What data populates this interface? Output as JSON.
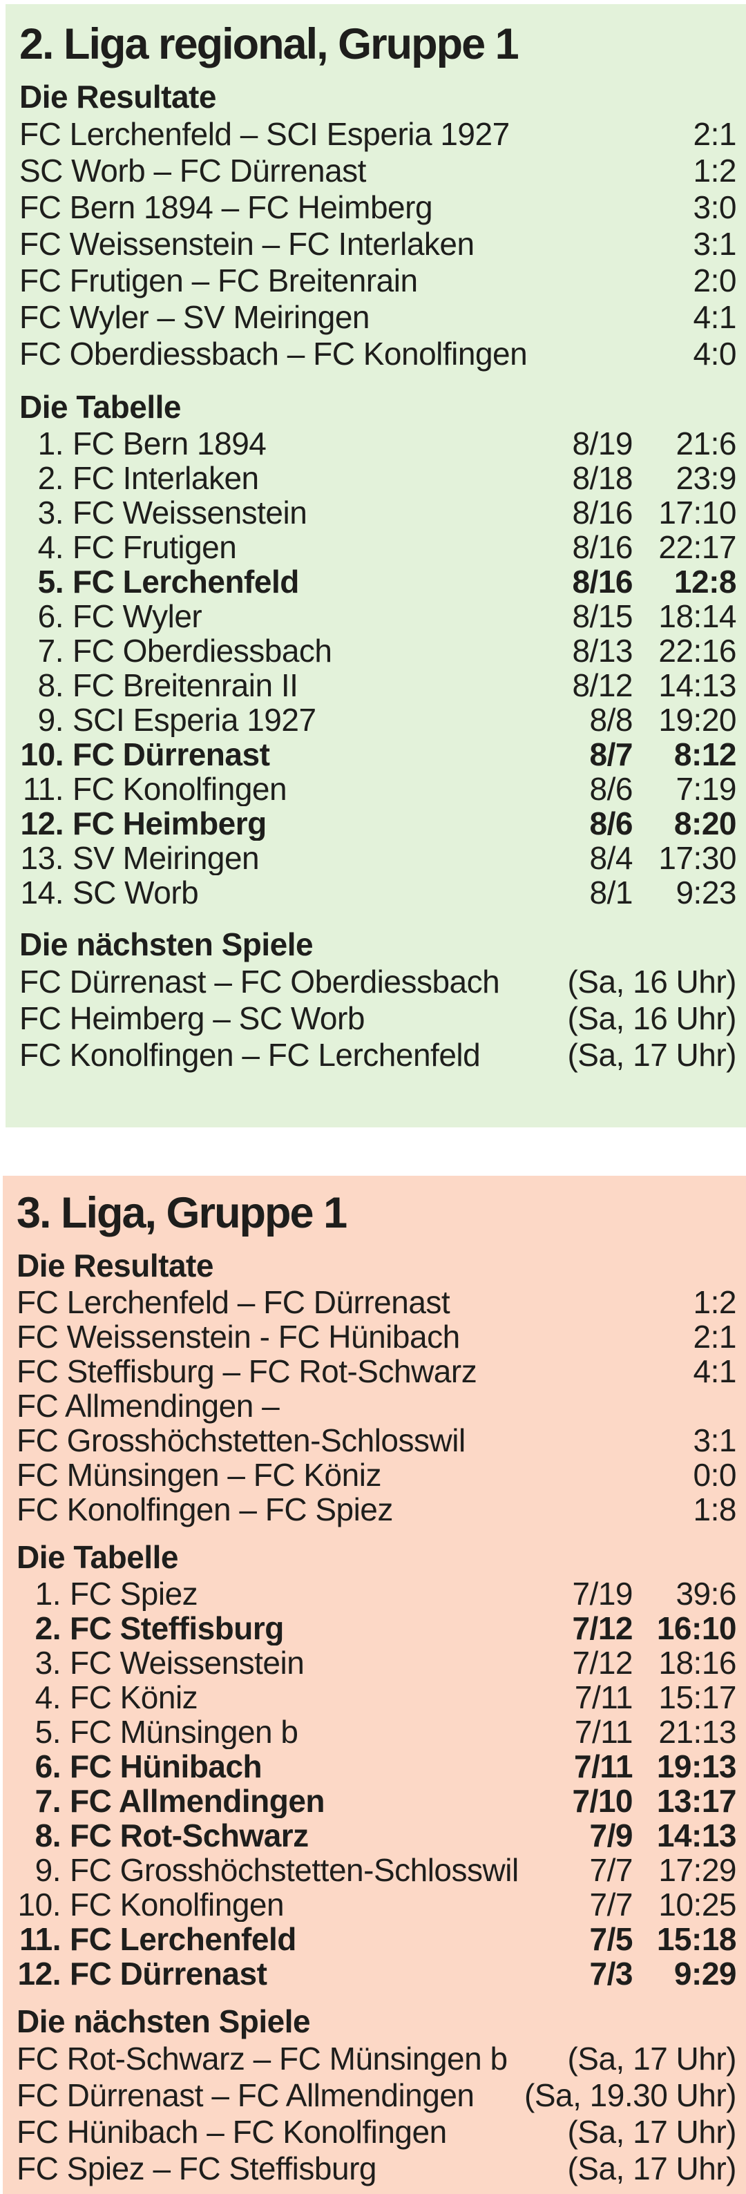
{
  "page": {
    "background": "#ffffff",
    "text_color": "#1e1e1c"
  },
  "sections": [
    {
      "title": "2. Liga regional, Gruppe 1",
      "background": "#e3f2da",
      "results_heading": "Die Resultate",
      "results": [
        {
          "match": "FC Lerchenfeld – SCI Esperia 1927",
          "score": "2:1"
        },
        {
          "match": "SC Worb – FC Dürrenast",
          "score": "1:2"
        },
        {
          "match": "FC Bern 1894 – FC Heimberg",
          "score": "3:0"
        },
        {
          "match": "FC Weissenstein – FC Interlaken",
          "score": "3:1"
        },
        {
          "match": "FC Frutigen – FC Breitenrain",
          "score": "2:0"
        },
        {
          "match": "FC Wyler – SV Meiringen",
          "score": "4:1"
        },
        {
          "match": "FC Oberdiessbach – FC Konolfingen",
          "score": "4:0"
        }
      ],
      "table_heading": "Die Tabelle",
      "table": [
        {
          "rank": "1.",
          "team": "FC Bern 1894",
          "games": "8/19",
          "goals": "21:6",
          "bold": false
        },
        {
          "rank": "2.",
          "team": "FC Interlaken",
          "games": "8/18",
          "goals": "23:9",
          "bold": false
        },
        {
          "rank": "3.",
          "team": "FC Weissenstein",
          "games": "8/16",
          "goals": "17:10",
          "bold": false
        },
        {
          "rank": "4.",
          "team": "FC Frutigen",
          "games": "8/16",
          "goals": "22:17",
          "bold": false
        },
        {
          "rank": "5.",
          "team": "FC Lerchenfeld",
          "games": "8/16",
          "goals": "12:8",
          "bold": true
        },
        {
          "rank": "6.",
          "team": "FC Wyler",
          "games": "8/15",
          "goals": "18:14",
          "bold": false
        },
        {
          "rank": "7.",
          "team": "FC Oberdiessbach",
          "games": "8/13",
          "goals": "22:16",
          "bold": false
        },
        {
          "rank": "8.",
          "team": "FC Breitenrain II",
          "games": "8/12",
          "goals": "14:13",
          "bold": false
        },
        {
          "rank": "9.",
          "team": "SCI Esperia 1927",
          "games": "8/8",
          "goals": "19:20",
          "bold": false
        },
        {
          "rank": "10.",
          "team": "FC Dürrenast",
          "games": "8/7",
          "goals": "8:12",
          "bold": true
        },
        {
          "rank": "11.",
          "team": "FC Konolfingen",
          "games": "8/6",
          "goals": "7:19",
          "bold": false
        },
        {
          "rank": "12.",
          "team": "FC Heimberg",
          "games": "8/6",
          "goals": "8:20",
          "bold": true
        },
        {
          "rank": "13.",
          "team": "SV Meiringen",
          "games": "8/4",
          "goals": "17:30",
          "bold": false
        },
        {
          "rank": "14.",
          "team": "SC Worb",
          "games": "8/1",
          "goals": "9:23",
          "bold": false
        }
      ],
      "fixtures_heading": "Die nächsten Spiele",
      "fixtures": [
        {
          "match": "FC Dürrenast – FC Oberdiessbach",
          "time": "(Sa, 16 Uhr)"
        },
        {
          "match": "FC Heimberg – SC Worb",
          "time": "(Sa, 16 Uhr)"
        },
        {
          "match": "FC Konolfingen – FC Lerchenfeld",
          "time": "(Sa, 17 Uhr)"
        }
      ]
    },
    {
      "title": "3. Liga, Gruppe 1",
      "background": "#fcd8c6",
      "results_heading": "Die Resultate",
      "results": [
        {
          "match": "FC Lerchenfeld – FC Dürrenast",
          "score": "1:2"
        },
        {
          "match": "FC Weissenstein - FC Hünibach",
          "score": "2:1"
        },
        {
          "match": "FC Steffisburg – FC Rot-Schwarz",
          "score": "4:1"
        },
        {
          "match": "FC Allmendingen –",
          "score": ""
        },
        {
          "match": "FC Grosshöchstetten-Schlosswil",
          "score": "3:1"
        },
        {
          "match": "FC Münsingen – FC Köniz",
          "score": "0:0"
        },
        {
          "match": "FC Konolfingen – FC Spiez",
          "score": "1:8"
        }
      ],
      "table_heading": "Die Tabelle",
      "table": [
        {
          "rank": "1.",
          "team": "FC Spiez",
          "games": "7/19",
          "goals": "39:6",
          "bold": false
        },
        {
          "rank": "2.",
          "team": "FC Steffisburg",
          "games": "7/12",
          "goals": "16:10",
          "bold": true
        },
        {
          "rank": "3.",
          "team": "FC Weissenstein",
          "games": "7/12",
          "goals": "18:16",
          "bold": false
        },
        {
          "rank": "4.",
          "team": "FC Köniz",
          "games": "7/11",
          "goals": "15:17",
          "bold": false
        },
        {
          "rank": "5.",
          "team": "FC Münsingen b",
          "games": "7/11",
          "goals": "21:13",
          "bold": false
        },
        {
          "rank": "6.",
          "team": "FC Hünibach",
          "games": "7/11",
          "goals": "19:13",
          "bold": true
        },
        {
          "rank": "7.",
          "team": "FC Allmendingen",
          "games": "7/10",
          "goals": "13:17",
          "bold": true
        },
        {
          "rank": "8.",
          "team": "FC Rot-Schwarz",
          "games": "7/9",
          "goals": "14:13",
          "bold": true
        },
        {
          "rank": "9.",
          "team": "FC Grosshöchstetten-Schlosswil",
          "games": "7/7",
          "goals": "17:29",
          "bold": false
        },
        {
          "rank": "10.",
          "team": "FC Konolfingen",
          "games": "7/7",
          "goals": "10:25",
          "bold": false
        },
        {
          "rank": "11.",
          "team": "FC Lerchenfeld",
          "games": "7/5",
          "goals": "15:18",
          "bold": true
        },
        {
          "rank": "12.",
          "team": "FC Dürrenast",
          "games": "7/3",
          "goals": "9:29",
          "bold": true
        }
      ],
      "fixtures_heading": "Die nächsten Spiele",
      "fixtures": [
        {
          "match": "FC Rot-Schwarz – FC Münsingen b",
          "time": "(Sa, 17 Uhr)"
        },
        {
          "match": "FC Dürrenast – FC Allmendingen",
          "time": "(Sa, 19.30 Uhr)"
        },
        {
          "match": "FC Hünibach – FC Konolfingen",
          "time": "(Sa, 17 Uhr)"
        },
        {
          "match": "FC Spiez – FC Steffisburg",
          "time": "(Sa, 17 Uhr)"
        }
      ]
    }
  ]
}
